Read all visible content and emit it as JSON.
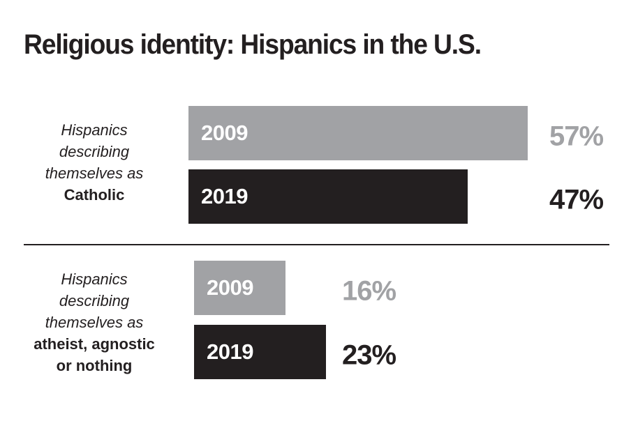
{
  "colors": {
    "y2009": "#a1a2a5",
    "y2019": "#231f20",
    "text": "#231f20"
  },
  "chart_data": {
    "type": "bar",
    "orientation": "horizontal",
    "title": "Religious identity: Hispanics in the U.S.",
    "xlabel": "",
    "ylabel": "",
    "grid": false,
    "unit": "%",
    "categories": [
      "Hispanics describing themselves as Catholic",
      "Hispanics describing themselves as atheist, agnostic or nothing"
    ],
    "series": [
      {
        "name": "2009",
        "values": [
          57,
          16
        ]
      },
      {
        "name": "2019",
        "values": [
          47,
          23
        ]
      }
    ],
    "groups": [
      {
        "label_lead": [
          "Hispanics",
          "describing",
          "themselves as"
        ],
        "label_strong": [
          "Catholic"
        ],
        "bars": [
          {
            "year": "2009",
            "value": 57,
            "display": "57%"
          },
          {
            "year": "2019",
            "value": 47,
            "display": "47%"
          }
        ]
      },
      {
        "label_lead": [
          "Hispanics",
          "describing",
          "themselves as"
        ],
        "label_strong": [
          "atheist, agnostic",
          "or nothing"
        ],
        "bars": [
          {
            "year": "2009",
            "value": 16,
            "display": "16%"
          },
          {
            "year": "2019",
            "value": 23,
            "display": "23%"
          }
        ]
      }
    ]
  }
}
